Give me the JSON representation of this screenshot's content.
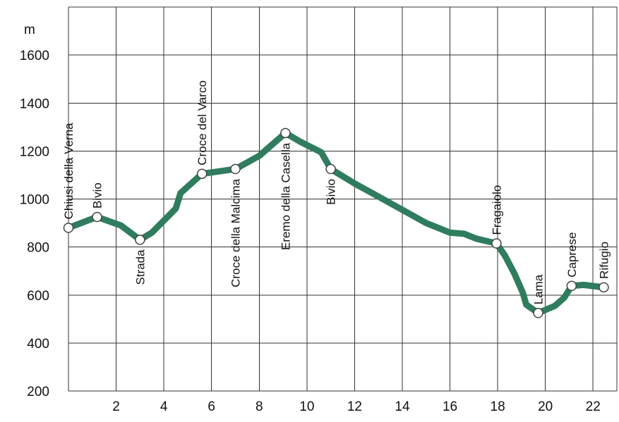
{
  "chart_data": {
    "type": "line",
    "title": "",
    "xlabel": "",
    "ylabel": "m",
    "xlim": [
      0,
      23
    ],
    "ylim": [
      200,
      1800
    ],
    "grid": true,
    "x_ticks": [
      2,
      4,
      6,
      8,
      10,
      12,
      14,
      16,
      18,
      20,
      22
    ],
    "y_ticks": [
      200,
      400,
      600,
      800,
      1000,
      1200,
      1400,
      1600
    ],
    "line_color": "#2f7d5e",
    "series": [
      {
        "profile": [
          [
            0,
            880
          ],
          [
            1.2,
            925
          ],
          [
            2.2,
            890
          ],
          [
            3.0,
            830
          ],
          [
            3.5,
            860
          ],
          [
            4.5,
            960
          ],
          [
            4.7,
            1025
          ],
          [
            5.6,
            1105
          ],
          [
            7.0,
            1125
          ],
          [
            8.0,
            1180
          ],
          [
            9.1,
            1275
          ],
          [
            9.7,
            1240
          ],
          [
            10.6,
            1195
          ],
          [
            11.0,
            1125
          ],
          [
            12.0,
            1065
          ],
          [
            13.0,
            1010
          ],
          [
            14.0,
            955
          ],
          [
            15.0,
            900
          ],
          [
            16.0,
            860
          ],
          [
            16.6,
            855
          ],
          [
            17.1,
            835
          ],
          [
            17.95,
            815
          ],
          [
            18.3,
            765
          ],
          [
            18.7,
            690
          ],
          [
            19.05,
            610
          ],
          [
            19.2,
            560
          ],
          [
            19.7,
            525
          ],
          [
            20.4,
            555
          ],
          [
            20.8,
            590
          ],
          [
            21.1,
            638
          ],
          [
            21.6,
            642
          ],
          [
            22.45,
            632
          ]
        ],
        "waypoints": [
          {
            "x": 0.0,
            "y": 880,
            "label": "Chiusi della Verna"
          },
          {
            "x": 1.2,
            "y": 925,
            "label": "Bivio"
          },
          {
            "x": 3.0,
            "y": 830,
            "label": "Strada"
          },
          {
            "x": 5.6,
            "y": 1105,
            "label": "Croce del Varco"
          },
          {
            "x": 7.0,
            "y": 1125,
            "label": "Croce della Malcima"
          },
          {
            "x": 9.1,
            "y": 1275,
            "label": "Eremo della Casella"
          },
          {
            "x": 11.0,
            "y": 1125,
            "label": "Bivio"
          },
          {
            "x": 17.95,
            "y": 815,
            "label": "Fragaiolo"
          },
          {
            "x": 19.7,
            "y": 525,
            "label": "Lama"
          },
          {
            "x": 21.1,
            "y": 638,
            "label": "Caprese"
          },
          {
            "x": 22.45,
            "y": 632,
            "label": "Rifugio"
          }
        ]
      }
    ]
  }
}
